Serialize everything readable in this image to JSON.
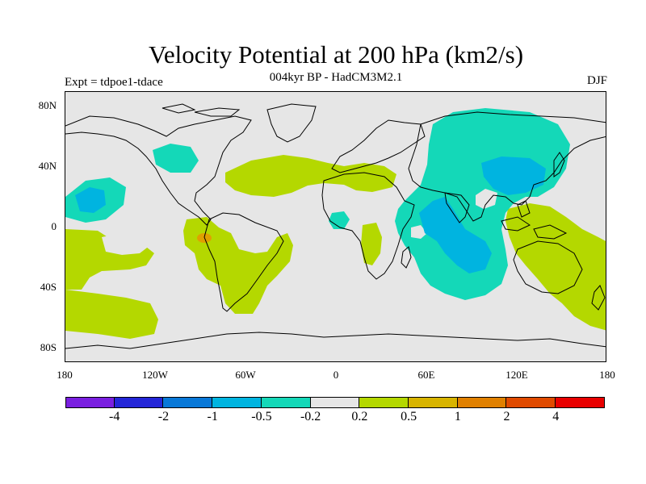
{
  "title": "Velocity Potential at 200 hPa (km2/s)",
  "subtitle": "004kyr BP - HadCM3M2.1",
  "expt": "Expt = tdpoe1-tdace",
  "season": "DJF",
  "lat_labels": [
    "80N",
    "40N",
    "0",
    "40S",
    "80S"
  ],
  "lon_labels": [
    "180",
    "120W",
    "60W",
    "0",
    "60E",
    "120E",
    "180"
  ],
  "colorbar": {
    "colors": [
      "#7a1fe0",
      "#2426d8",
      "#0878d8",
      "#00b4e0",
      "#14d8b8",
      "#e6e6e6",
      "#b4d800",
      "#d8b400",
      "#e08000",
      "#e04a00",
      "#e80000"
    ],
    "labels": [
      "-4",
      "-2",
      "-1",
      "-0.5",
      "-0.2",
      "0.2",
      "0.5",
      "1",
      "2",
      "4"
    ]
  },
  "colors": {
    "neutral": "#e6e6e6",
    "negative_fill": "#14d8b8",
    "negative_core": "#00b4e0",
    "positive_fill": "#b4d800",
    "positive_core": "#e0a000"
  }
}
